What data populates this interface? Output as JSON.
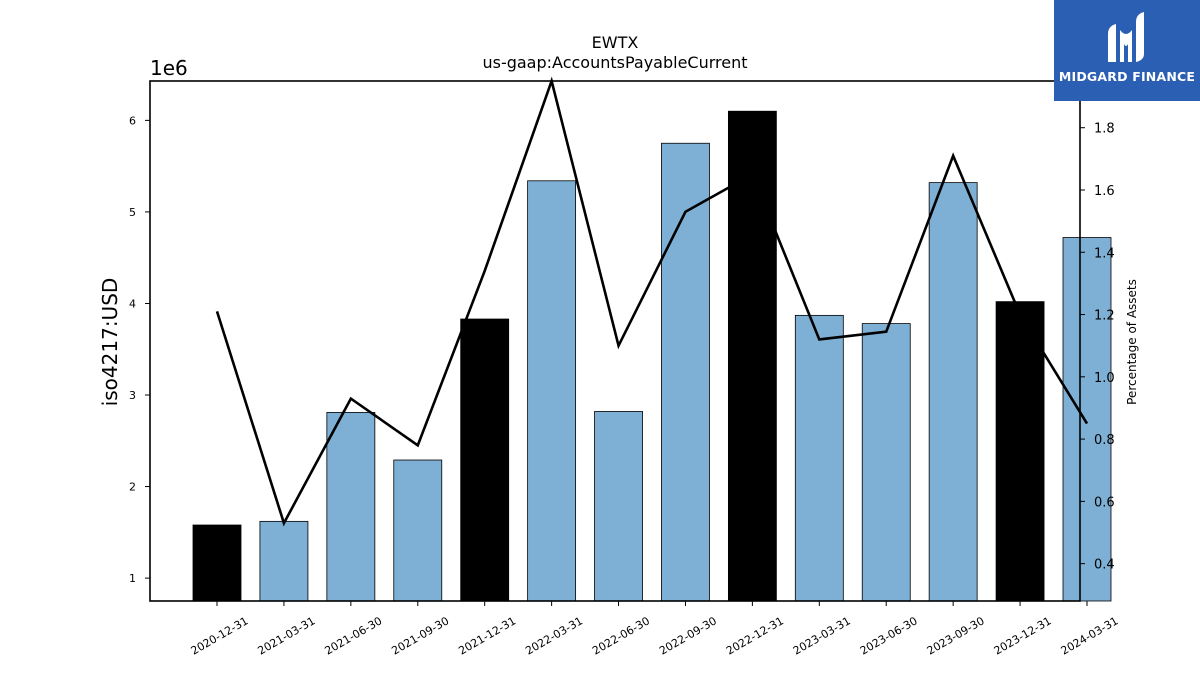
{
  "chart_data": {
    "type": "bar+line",
    "title": "EWTX",
    "subtitle": "us-gaap:AccountsPayableCurrent",
    "ylabel": "iso4217:USD",
    "y_offset_label": "1e6",
    "y2label": "Percentage of Assets",
    "categories": [
      "2020-12-31",
      "2021-03-31",
      "2021-06-30",
      "2021-09-30",
      "2021-12-31",
      "2022-03-31",
      "2022-06-30",
      "2022-09-30",
      "2022-12-31",
      "2023-03-31",
      "2023-06-30",
      "2023-09-30",
      "2023-12-31",
      "2024-03-31"
    ],
    "series": [
      {
        "kind": "bar",
        "axis": "left",
        "values": [
          1580000,
          1620000,
          2810000,
          2290000,
          3830000,
          5340000,
          2820000,
          5750000,
          6100000,
          3870000,
          3780000,
          5320000,
          4020000,
          4720000
        ],
        "highlight": [
          true,
          false,
          false,
          false,
          true,
          false,
          false,
          false,
          true,
          false,
          false,
          false,
          true,
          false
        ]
      },
      {
        "kind": "line",
        "axis": "right",
        "values": [
          1.21,
          0.53,
          0.93,
          0.78,
          1.34,
          1.95,
          1.1,
          1.53,
          1.65,
          1.12,
          1.145,
          1.71,
          1.2,
          0.85
        ]
      }
    ],
    "ylim": [
      750000,
      6430000
    ],
    "y_ticks": [
      1,
      2,
      3,
      4,
      5,
      6
    ],
    "y2lim": [
      0.28,
      1.95
    ],
    "y2_ticks": [
      "0.4",
      "0.6",
      "0.8",
      "1.0",
      "1.2",
      "1.4",
      "1.6",
      "1.8"
    ],
    "colors": {
      "bar": "#7eb0d5",
      "highlight": "#000000",
      "line": "#000000"
    }
  },
  "logo": {
    "text": "MIDGARD FINANCE",
    "bg": "#2b5fb3",
    "icon": "midgard-logo-icon"
  }
}
